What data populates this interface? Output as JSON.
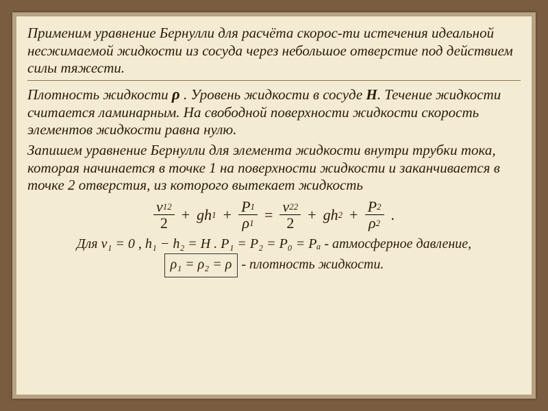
{
  "colors": {
    "outer_bg": "#7a5c41",
    "frame_border": "#b8a284",
    "paper_bg": "#f3ecd2",
    "text": "#2b1a0b"
  },
  "typography": {
    "body_fontsize_pt": 16,
    "body_font": "Georgia / Times italic",
    "equation_fontsize_pt": 17
  },
  "para1": "Применим уравнение Бернулли  для  расчёта скорос-ти истечения идеальной несжимаемой жидкости  из сосуда через небольшое отверстие под действием силы тяжести.",
  "para2_a": "Плотность жидкости ",
  "para2_rho": "ρ",
  "para2_b": " . Уровень жидкости в сосуде ",
  "para2_H": "H",
  "para2_c": ". Течение жидкости считается ламинарным. На свободной поверхности жидкости скорость элементов жидкости равна нулю.",
  "para3": "Запишем уравнение Бернулли для элемента жидкости внутри трубки тока, которая начинается в точке 1 на поверхности жидкости и заканчивается в точке 2 отверстия, из которого вытекает жидкость",
  "equation": {
    "term1": {
      "top_var": "v",
      "top_sub": "1",
      "top_sup": "2",
      "bot": "2"
    },
    "plus1": "+",
    "term2": {
      "text": "gh",
      "sub": "1"
    },
    "plus2": "+",
    "term3": {
      "top_var": "P",
      "top_sub": "1",
      "bot_var": "ρ",
      "bot_sub": "1"
    },
    "eq": "=",
    "term4": {
      "top_var": "v",
      "top_sub": "2",
      "top_sup": "2",
      "bot": "2"
    },
    "plus3": "+",
    "term5": {
      "text": "gh",
      "sub": "2"
    },
    "plus4": "+",
    "term6": {
      "top_var": "P",
      "top_sub": "2",
      "bot_var": "ρ",
      "bot_sub": "2"
    },
    "period": "."
  },
  "final": {
    "prefix": "Для ",
    "v1eq": "v₁ = 0",
    "comma1": " , ",
    "hdiff": "h₁ − h₂ = H",
    "dot1": " . ",
    "pchain": "P₁ = P₂ = P₀ = Pₐ",
    "atm_text": " - атмосферное давление,   ",
    "rho_box": "ρ₁ = ρ₂ = ρ",
    "dens_text": "   - плотность жидкости."
  }
}
